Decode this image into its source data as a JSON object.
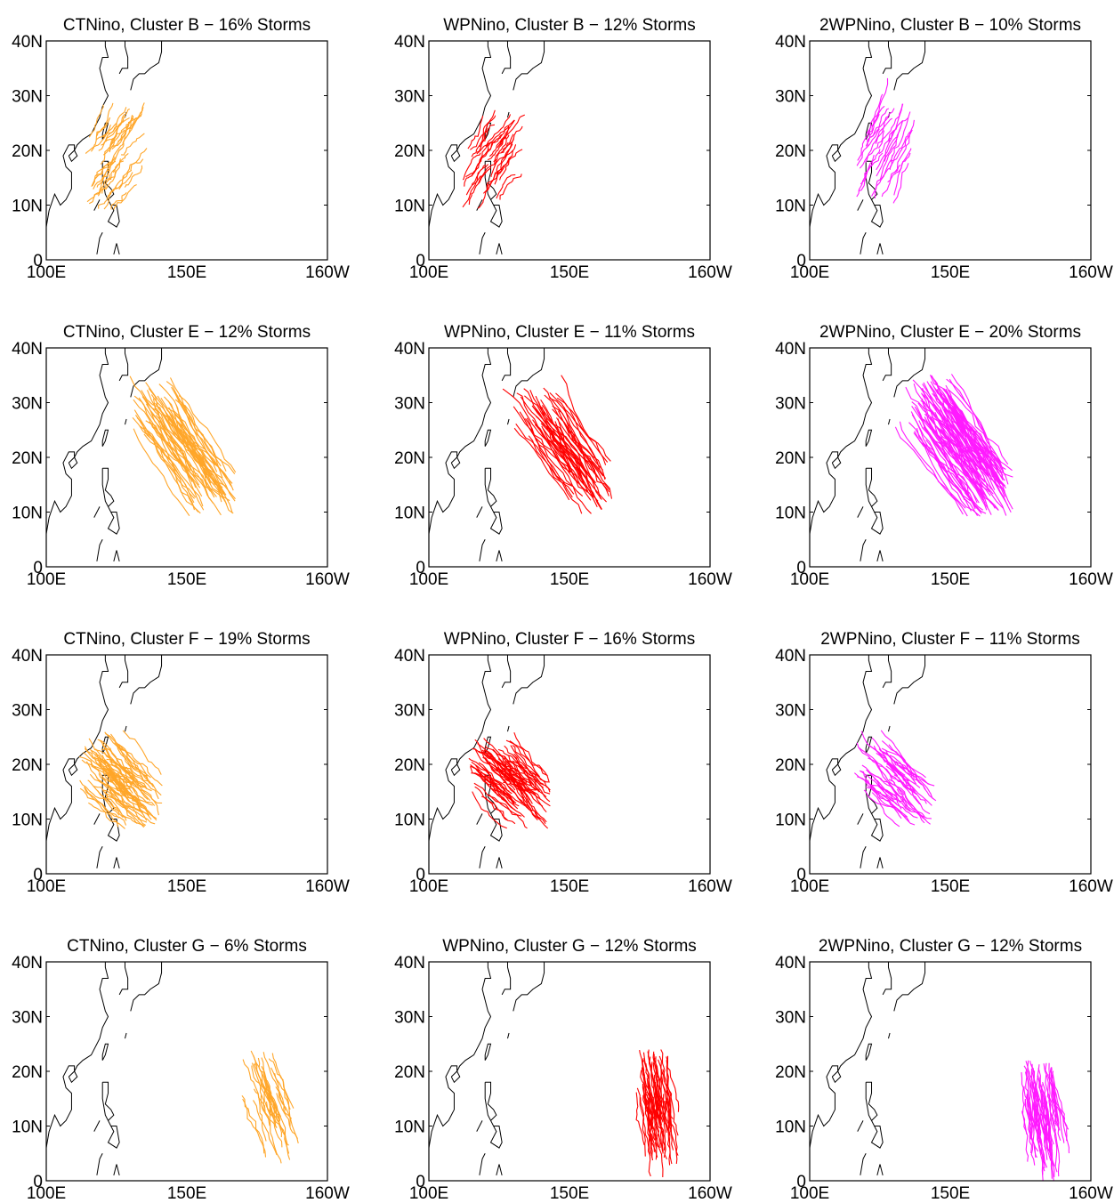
{
  "figure": {
    "panels": [
      {
        "title": "CTNino, Cluster B − 16% Storms",
        "color": "#ffa629",
        "center": [
          118,
          17
        ],
        "tracks": 40,
        "spread": [
          7,
          7
        ],
        "drift": [
          2,
          3
        ],
        "len": 10
      },
      {
        "title": "WPNino, Cluster B − 12% Storms",
        "color": "#ff0000",
        "center": [
          116,
          16
        ],
        "tracks": 35,
        "spread": [
          7,
          6
        ],
        "drift": [
          2,
          3
        ],
        "len": 10
      },
      {
        "title": "2WPNino, Cluster B − 10% Storms",
        "color": "#ff1aff",
        "center": [
          120,
          18
        ],
        "tracks": 30,
        "spread": [
          7,
          7
        ],
        "drift": [
          2,
          4
        ],
        "len": 10
      },
      {
        "title": "CTNino, Cluster E − 12% Storms",
        "color": "#ffa629",
        "center": [
          150,
          17
        ],
        "tracks": 55,
        "spread": [
          9,
          5
        ],
        "drift": [
          -2,
          3
        ],
        "len": 28
      },
      {
        "title": "WPNino, Cluster E − 11% Storms",
        "color": "#ff0000",
        "center": [
          150,
          17
        ],
        "tracks": 45,
        "spread": [
          8,
          5
        ],
        "drift": [
          -2,
          3
        ],
        "len": 26
      },
      {
        "title": "2WPNino, Cluster E − 20% Storms",
        "color": "#ff1aff",
        "center": [
          155,
          17
        ],
        "tracks": 90,
        "spread": [
          9,
          5
        ],
        "drift": [
          -2,
          3
        ],
        "len": 28
      },
      {
        "title": "CTNino, Cluster F − 19% Storms",
        "color": "#ffa629",
        "center": [
          128,
          15
        ],
        "tracks": 70,
        "spread": [
          8,
          5
        ],
        "drift": [
          -2,
          2
        ],
        "len": 18
      },
      {
        "title": "WPNino, Cluster F − 16% Storms",
        "color": "#ff0000",
        "center": [
          130,
          15
        ],
        "tracks": 65,
        "spread": [
          8,
          5
        ],
        "drift": [
          -2,
          2
        ],
        "len": 18
      },
      {
        "title": "2WPNino, Cluster F − 11% Storms",
        "color": "#ff1aff",
        "center": [
          132,
          15
        ],
        "tracks": 45,
        "spread": [
          8,
          5
        ],
        "drift": [
          -2,
          2
        ],
        "len": 18
      },
      {
        "title": "CTNino, Cluster G − 6% Storms",
        "color": "#ffa629",
        "center": [
          167,
          22
        ],
        "tracks": 30,
        "spread": [
          7,
          5
        ],
        "drift": [
          0.6,
          -2
        ],
        "len": 28
      },
      {
        "title": "WPNino, Cluster G − 12% Storms",
        "color": "#ff0000",
        "center": [
          170,
          22
        ],
        "tracks": 55,
        "spread": [
          6,
          5
        ],
        "drift": [
          0.3,
          -2
        ],
        "len": 30
      },
      {
        "title": "2WPNino, Cluster G − 12% Storms",
        "color": "#ff1aff",
        "center": [
          172,
          20
        ],
        "tracks": 60,
        "spread": [
          6,
          5
        ],
        "drift": [
          0.3,
          -2
        ],
        "len": 30
      }
    ],
    "x_ticks": [
      "100E",
      "150E",
      "160W"
    ],
    "y_ticks": [
      "0",
      "10N",
      "20N",
      "30N",
      "40N"
    ],
    "lon_range": [
      100,
      200
    ],
    "lat_range": [
      0,
      40
    ]
  }
}
